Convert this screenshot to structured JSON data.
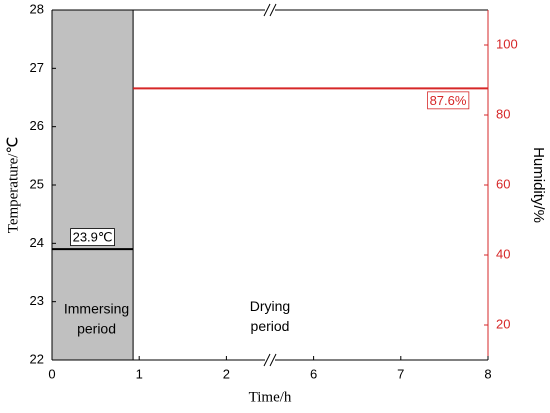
{
  "chart_data": {
    "type": "line",
    "xlabel": "Time/h",
    "ylabel": "Temperature/℃",
    "y2label": "Humidity/%",
    "xlim": [
      0,
      8
    ],
    "x_break": [
      2.5,
      5.5
    ],
    "xticks": [
      0,
      1,
      2,
      6,
      7,
      8
    ],
    "ylim": [
      22,
      28
    ],
    "yticks": [
      22,
      23,
      24,
      25,
      26,
      27,
      28
    ],
    "y2lim": [
      10,
      110
    ],
    "y2ticks": [
      20,
      40,
      60,
      80,
      100
    ],
    "y2color": "#d62728",
    "regions": [
      {
        "x": [
          0,
          0.93
        ],
        "color": "#c0c0c0",
        "label": [
          "Immersing",
          "period"
        ]
      }
    ],
    "annotations": [
      {
        "x": 3,
        "y": 25,
        "axis": "y2",
        "text": [
          "Drying",
          "period"
        ]
      }
    ],
    "series": [
      {
        "color": "#000000",
        "x": [
          0,
          0.93
        ],
        "values": [
          23.9,
          23.9
        ],
        "value_label": "23.9℃"
      },
      {
        "color": "#d62728",
        "axis": "y2",
        "x": [
          0.93,
          8
        ],
        "values": [
          87.6,
          87.6
        ],
        "value_label": "87.6%"
      }
    ]
  }
}
